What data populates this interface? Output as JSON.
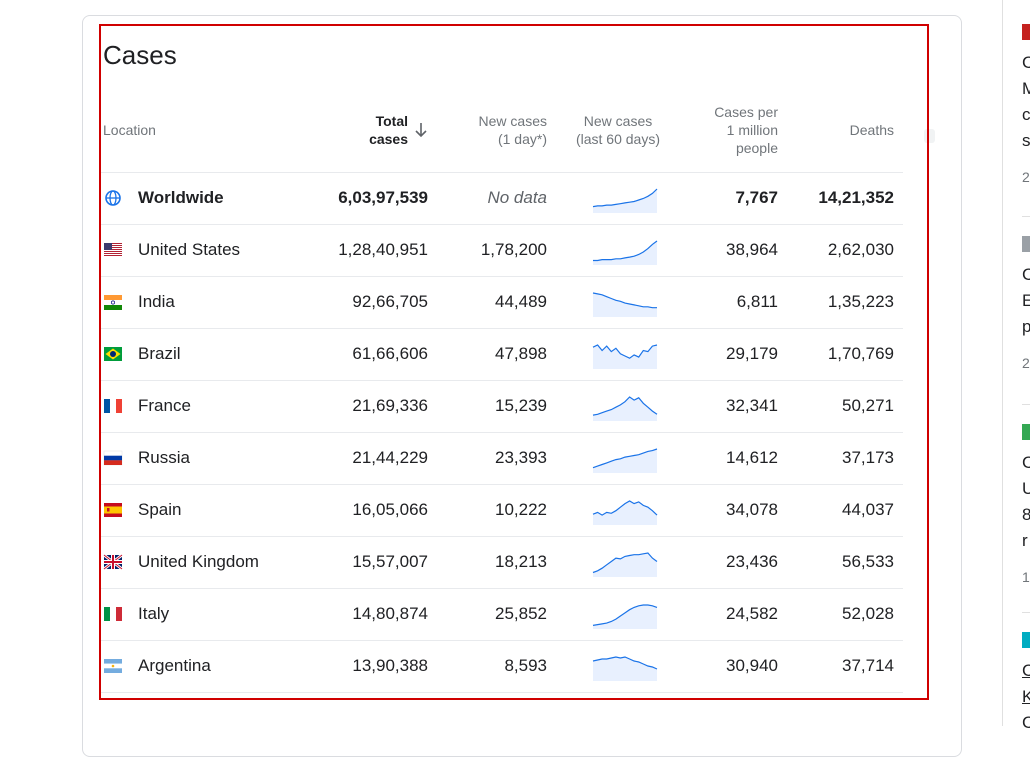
{
  "card": {
    "title": "Cases",
    "headers": {
      "location": "Location",
      "total_line1": "Total",
      "total_line2": "cases",
      "new_line1": "New cases",
      "new_line2": "(1 day*)",
      "spark_line1": "New cases",
      "spark_line2": "(last 60 days)",
      "permil_line1": "Cases per",
      "permil_line2": "1 million",
      "permil_line3": "people",
      "deaths": "Deaths"
    },
    "rows": [
      {
        "name": "Worldwide",
        "total": "6,03,97,539",
        "new": "No data",
        "permil": "7,767",
        "deaths": "14,21,352",
        "flag": "globe-icon",
        "trend": [
          6,
          7,
          7,
          8,
          8,
          9,
          10,
          11,
          12,
          13,
          15,
          17,
          20,
          24,
          30
        ]
      },
      {
        "name": "United States",
        "total": "1,28,40,951",
        "new": "1,78,200",
        "permil": "38,964",
        "deaths": "2,62,030",
        "flag": "us-flag-icon",
        "trend": [
          3,
          3,
          4,
          4,
          4,
          5,
          5,
          6,
          7,
          8,
          10,
          13,
          17,
          22,
          26
        ]
      },
      {
        "name": "India",
        "total": "92,66,705",
        "new": "44,489",
        "permil": "6,811",
        "deaths": "1,35,223",
        "flag": "india-flag-icon",
        "trend": [
          24,
          23,
          22,
          20,
          18,
          16,
          15,
          13,
          12,
          11,
          10,
          9,
          9,
          8,
          8
        ]
      },
      {
        "name": "Brazil",
        "total": "61,66,606",
        "new": "47,898",
        "permil": "29,179",
        "deaths": "1,70,769",
        "flag": "brazil-flag-icon",
        "trend": [
          18,
          20,
          15,
          19,
          14,
          17,
          12,
          10,
          8,
          11,
          9,
          15,
          14,
          19,
          20
        ]
      },
      {
        "name": "France",
        "total": "21,69,336",
        "new": "15,239",
        "permil": "32,341",
        "deaths": "50,271",
        "flag": "france-flag-icon",
        "trend": [
          5,
          6,
          8,
          10,
          12,
          15,
          18,
          22,
          28,
          24,
          27,
          20,
          15,
          10,
          6
        ]
      },
      {
        "name": "Russia",
        "total": "21,44,229",
        "new": "23,393",
        "permil": "14,612",
        "deaths": "37,173",
        "flag": "russia-flag-icon",
        "trend": [
          4,
          6,
          8,
          10,
          12,
          14,
          15,
          17,
          18,
          19,
          20,
          22,
          24,
          25,
          27
        ]
      },
      {
        "name": "Spain",
        "total": "16,05,066",
        "new": "10,222",
        "permil": "34,078",
        "deaths": "44,037",
        "flag": "spain-flag-icon",
        "trend": [
          10,
          12,
          9,
          12,
          11,
          14,
          18,
          22,
          25,
          22,
          24,
          20,
          18,
          14,
          9
        ]
      },
      {
        "name": "United Kingdom",
        "total": "15,57,007",
        "new": "18,213",
        "permil": "23,436",
        "deaths": "56,533",
        "flag": "uk-flag-icon",
        "trend": [
          3,
          5,
          8,
          12,
          16,
          20,
          19,
          22,
          23,
          24,
          24,
          25,
          26,
          20,
          16
        ]
      },
      {
        "name": "Italy",
        "total": "14,80,874",
        "new": "25,852",
        "permil": "24,582",
        "deaths": "52,028",
        "flag": "italy-flag-icon",
        "trend": [
          2,
          3,
          4,
          5,
          7,
          10,
          14,
          18,
          22,
          25,
          27,
          28,
          28,
          27,
          25
        ]
      },
      {
        "name": "Argentina",
        "total": "13,90,388",
        "new": "8,593",
        "permil": "30,940",
        "deaths": "37,714",
        "flag": "argentina-flag-icon",
        "trend": [
          18,
          19,
          20,
          20,
          21,
          22,
          21,
          22,
          20,
          18,
          17,
          15,
          13,
          12,
          10
        ]
      }
    ]
  },
  "news": {
    "items": [
      {
        "lines": [
          "C",
          "M",
          "c",
          "s"
        ],
        "meta": "2"
      },
      {
        "lines": [
          "C",
          "E",
          "p"
        ],
        "meta": "2"
      },
      {
        "lines": [
          "C",
          "U",
          "8",
          "r"
        ],
        "meta": "1"
      },
      {
        "lines": [
          "C",
          "K",
          "C"
        ],
        "meta": ""
      }
    ]
  },
  "colors": {
    "accent": "#1a73e8",
    "spark_fill": "#e8f0fe",
    "highlight": "#d00000"
  }
}
